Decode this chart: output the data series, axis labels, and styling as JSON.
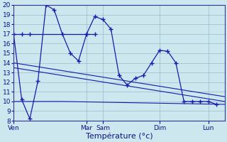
{
  "background_color": "#cce8ee",
  "grid_color": "#99bbcc",
  "line_color": "#1a1aaa",
  "marker_style": "+",
  "marker_size": 4,
  "ylim": [
    8,
    20
  ],
  "yticks": [
    8,
    9,
    10,
    11,
    12,
    13,
    14,
    15,
    16,
    17,
    18,
    19,
    20
  ],
  "xlabel": "Température (°c)",
  "xlabel_fontsize": 8,
  "tick_label_fontsize": 6.5,
  "xtick_labels": [
    "Ven",
    "Mar",
    "Sam",
    "Dim",
    "Lun"
  ],
  "xtick_positions": [
    0,
    9,
    11,
    18,
    24
  ],
  "xlim": [
    0,
    26
  ],
  "line1_x": [
    0,
    1,
    2,
    9,
    10
  ],
  "line1_y": [
    17,
    17,
    17,
    17,
    17
  ],
  "line2_x": [
    0,
    26
  ],
  "line2_y": [
    14.0,
    10.5
  ],
  "line3_x": [
    0,
    26
  ],
  "line3_y": [
    13.5,
    10.0
  ],
  "line4_x": [
    0,
    5,
    6,
    26
  ],
  "line4_y": [
    10.0,
    10.0,
    10.0,
    9.7
  ],
  "line5_x": [
    0,
    1,
    2,
    3,
    4,
    5,
    6,
    7,
    8,
    9,
    10,
    11,
    12,
    13,
    14,
    15,
    16,
    17,
    18,
    19,
    20,
    21,
    22,
    23,
    24,
    25
  ],
  "line5_y": [
    17.0,
    10.2,
    8.2,
    12.1,
    20.0,
    19.5,
    17.0,
    15.0,
    14.2,
    17.0,
    18.8,
    18.5,
    17.5,
    12.7,
    11.7,
    12.4,
    12.7,
    14.0,
    15.3,
    15.2,
    14.0,
    10.0,
    10.0,
    10.0,
    10.0,
    9.7
  ]
}
